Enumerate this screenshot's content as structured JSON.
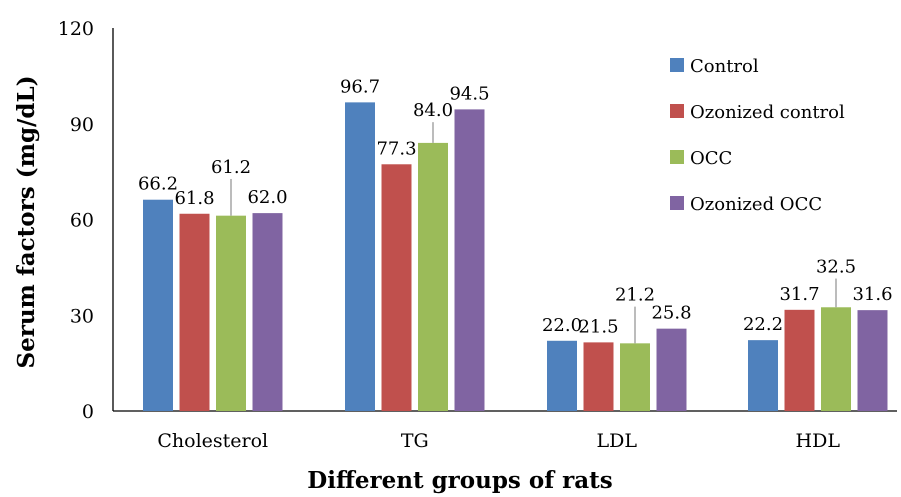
{
  "chart_data": {
    "type": "bar",
    "title": "",
    "xlabel": "Different groups of rats",
    "ylabel": "Serum factors (mg/dL)",
    "ylim": [
      0,
      120
    ],
    "yticks": [
      "0",
      "30",
      "60",
      "90",
      "120"
    ],
    "categories": [
      "Cholesterol",
      "TG",
      "LDL",
      "HDL"
    ],
    "series": [
      {
        "name": "Control",
        "color": "#4f81bd",
        "values": [
          66.2,
          96.7,
          22.0,
          22.2
        ],
        "errors": [
          0,
          0,
          0,
          0
        ],
        "labels": [
          "66.2",
          "96.7",
          "22.0",
          "22.2"
        ]
      },
      {
        "name": "Ozonized control",
        "color": "#c0504d",
        "values": [
          61.8,
          77.3,
          21.5,
          31.7
        ],
        "errors": [
          0,
          0,
          0,
          0
        ],
        "labels": [
          "61.8",
          "77.3",
          "21.5",
          "31.7"
        ]
      },
      {
        "name": "OCC",
        "color": "#9bbb59",
        "values": [
          61.2,
          84.0,
          21.2,
          32.5
        ],
        "errors": [
          11.5,
          6.5,
          11.5,
          9.0
        ],
        "labels": [
          "61.2",
          "84.0",
          "21.2",
          "32.5"
        ]
      },
      {
        "name": "Ozonized OCC",
        "color": "#8064a2",
        "values": [
          62.0,
          94.5,
          25.8,
          31.6
        ],
        "errors": [
          0,
          0,
          0,
          0
        ],
        "labels": [
          "62.0",
          "94.5",
          "25.8",
          "31.6"
        ]
      }
    ],
    "legend_position": "right",
    "grid": false
  }
}
